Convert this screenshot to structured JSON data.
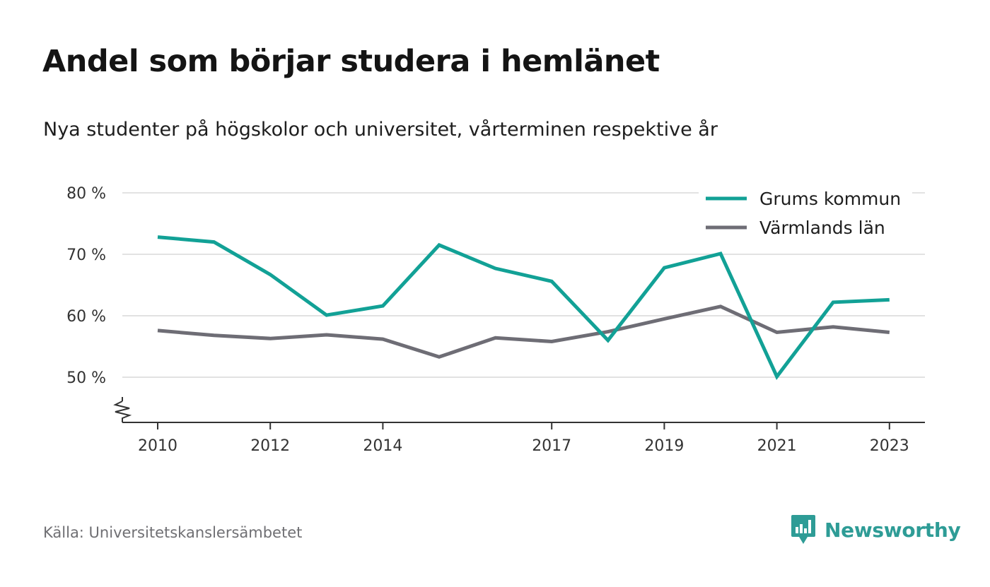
{
  "header": {
    "title": "Andel som börjar studera i hemlänet",
    "subtitle": "Nya studenter på högskolor och universitet, vårterminen respektive år"
  },
  "footer": {
    "source": "Källa: Universitetskanslersämbetet",
    "brand": "Newsworthy",
    "brand_icon": "newsworthy-logo-icon"
  },
  "colors": {
    "grums": "#12a196",
    "varmland": "#6e6d75",
    "grid": "#d9d9d9",
    "axis": "#333333",
    "brand": "#2e9c96"
  },
  "chart_data": {
    "type": "line",
    "x": [
      2010,
      2011,
      2012,
      2013,
      2014,
      2015,
      2016,
      2017,
      2018,
      2019,
      2020,
      2021,
      2022,
      2023
    ],
    "x_tick_labels": [
      "2010",
      "2012",
      "2014",
      "2017",
      "2019",
      "2021",
      "2023"
    ],
    "y_ticks": [
      50,
      60,
      70,
      80
    ],
    "y_tick_labels": [
      "50 %",
      "60 %",
      "70 %",
      "80 %"
    ],
    "ylim": [
      42.5,
      80
    ],
    "y_axis_break": true,
    "grid": true,
    "legend_position": "top-right",
    "series": [
      {
        "name": "Grums kommun",
        "color": "#12a196",
        "values": [
          72.8,
          72.0,
          66.7,
          60.1,
          61.6,
          71.5,
          67.7,
          65.6,
          56.0,
          67.8,
          70.1,
          50.1,
          62.2,
          62.6
        ]
      },
      {
        "name": "Värmlands län",
        "color": "#6e6d75",
        "values": [
          57.6,
          56.8,
          56.3,
          56.9,
          56.2,
          53.3,
          56.4,
          55.8,
          57.4,
          59.5,
          61.5,
          57.3,
          58.2,
          57.3
        ]
      }
    ]
  }
}
